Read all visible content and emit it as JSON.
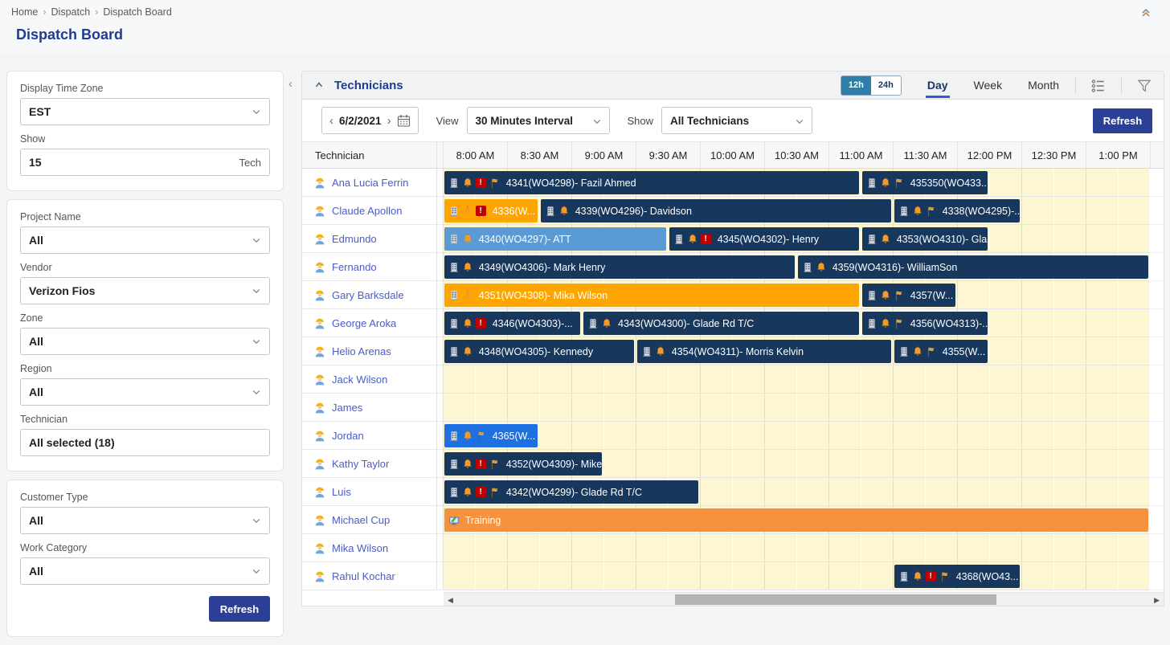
{
  "breadcrumb": {
    "items": [
      "Home",
      "Dispatch",
      "Dispatch Board"
    ]
  },
  "page_title": "Dispatch Board",
  "sidebar": {
    "panel1": {
      "timezone_label": "Display Time Zone",
      "timezone_value": "EST",
      "show_label": "Show",
      "show_value": "15",
      "show_suffix": "Tech"
    },
    "panel2": {
      "project_label": "Project Name",
      "project_value": "All",
      "vendor_label": "Vendor",
      "vendor_value": "Verizon Fios",
      "zone_label": "Zone",
      "zone_value": "All",
      "region_label": "Region",
      "region_value": "All",
      "technician_label": "Technician",
      "technician_value": "All selected (18)"
    },
    "panel3": {
      "customer_label": "Customer Type",
      "customer_value": "All",
      "work_label": "Work Category",
      "work_value": "All",
      "refresh_label": "Refresh"
    }
  },
  "panel": {
    "title": "Technicians",
    "toggle_12h": "12h",
    "toggle_24h": "24h",
    "tabs": [
      {
        "label": "Day",
        "active": true
      },
      {
        "label": "Week",
        "active": false
      },
      {
        "label": "Month",
        "active": false
      }
    ],
    "date_value": "6/2/2021",
    "view_label": "View",
    "view_value": "30 Minutes Interval",
    "show_label": "Show",
    "show_value": "All Technicians",
    "refresh_label": "Refresh"
  },
  "colors": {
    "navy": "#17375D",
    "orange": "#FFA502",
    "training_orange": "#F6913D",
    "light_blue": "#5B9BD5",
    "bright_blue": "#1E6FE0",
    "alert_red": "#C00000",
    "bell_orange": "#F59B23",
    "flag_gold": "#D9A441",
    "refresh_navy": "#2B3F96",
    "link_blue": "#4A5CC5",
    "tab_underline": "#2F5BD7",
    "toggle_teal": "#2D7FA9"
  },
  "grid": {
    "tech_col_header": "Technician",
    "interval_minutes": 30,
    "times": [
      "8:00 AM",
      "8:30 AM",
      "9:00 AM",
      "9:30 AM",
      "10:00 AM",
      "10:30 AM",
      "11:00 AM",
      "11:30 AM",
      "12:00 PM",
      "12:30 PM",
      "1:00 PM"
    ],
    "rows": [
      {
        "name": "Ana Lucia Ferrin",
        "bars": [
          {
            "start": 0,
            "end": 195,
            "color": "navy",
            "icons": [
              "building",
              "bell",
              "alert",
              "flag"
            ],
            "label": "4341(WO4298)- Fazil Ahmed"
          },
          {
            "start": 195,
            "end": 255,
            "color": "navy",
            "icons": [
              "building",
              "bell",
              "flag"
            ],
            "label": "435350(WO433..."
          }
        ]
      },
      {
        "name": "Claude Apollon",
        "bars": [
          {
            "start": 0,
            "end": 45,
            "color": "orange",
            "icons": [
              "building",
              "bell",
              "alert"
            ],
            "label": "4336(W..."
          },
          {
            "start": 45,
            "end": 210,
            "color": "navy",
            "icons": [
              "building",
              "bell"
            ],
            "label": "4339(WO4296)- Davidson"
          },
          {
            "start": 210,
            "end": 270,
            "color": "navy",
            "icons": [
              "building",
              "bell",
              "flag"
            ],
            "label": "4338(WO4295)-..."
          }
        ]
      },
      {
        "name": "Edmundo",
        "bars": [
          {
            "start": 0,
            "end": 105,
            "color": "light_blue",
            "icons": [
              "building",
              "bell"
            ],
            "label": "4340(WO4297)- ATT"
          },
          {
            "start": 105,
            "end": 195,
            "color": "navy",
            "icons": [
              "building",
              "bell",
              "alert"
            ],
            "label": "4345(WO4302)- Henry"
          },
          {
            "start": 195,
            "end": 255,
            "color": "navy",
            "icons": [
              "building",
              "bell"
            ],
            "label": "4353(WO4310)- Gla..."
          }
        ]
      },
      {
        "name": "Fernando",
        "bars": [
          {
            "start": 0,
            "end": 165,
            "color": "navy",
            "icons": [
              "building",
              "bell"
            ],
            "label": "4349(WO4306)- Mark Henry"
          },
          {
            "start": 165,
            "end": 330,
            "color": "navy",
            "icons": [
              "building",
              "bell"
            ],
            "label": "4359(WO4316)- WilliamSon"
          }
        ]
      },
      {
        "name": "Gary Barksdale",
        "bars": [
          {
            "start": 0,
            "end": 195,
            "color": "orange",
            "icons": [
              "building",
              "bell"
            ],
            "label": "4351(WO4308)- Mika Wilson"
          },
          {
            "start": 195,
            "end": 240,
            "color": "navy",
            "icons": [
              "building",
              "bell",
              "flag"
            ],
            "label": "4357(W..."
          }
        ]
      },
      {
        "name": "George Aroka",
        "bars": [
          {
            "start": 0,
            "end": 65,
            "color": "navy",
            "icons": [
              "building",
              "bell",
              "alert"
            ],
            "label": "4346(WO4303)-..."
          },
          {
            "start": 65,
            "end": 195,
            "color": "navy",
            "icons": [
              "building",
              "bell"
            ],
            "label": "4343(WO4300)- Glade Rd T/C"
          },
          {
            "start": 195,
            "end": 255,
            "color": "navy",
            "icons": [
              "building",
              "bell",
              "flag"
            ],
            "label": "4356(WO4313)-..."
          }
        ]
      },
      {
        "name": "Helio Arenas",
        "bars": [
          {
            "start": 0,
            "end": 90,
            "color": "navy",
            "icons": [
              "building",
              "bell"
            ],
            "label": "4348(WO4305)- Kennedy"
          },
          {
            "start": 90,
            "end": 210,
            "color": "navy",
            "icons": [
              "building",
              "bell"
            ],
            "label": "4354(WO4311)- Morris Kelvin"
          },
          {
            "start": 210,
            "end": 255,
            "color": "navy",
            "icons": [
              "building",
              "bell",
              "flag"
            ],
            "label": "4355(W..."
          }
        ]
      },
      {
        "name": "Jack Wilson",
        "bars": []
      },
      {
        "name": "James",
        "bars": []
      },
      {
        "name": "Jordan",
        "bars": [
          {
            "start": 0,
            "end": 45,
            "color": "bright_blue",
            "icons": [
              "building",
              "bell",
              "flag"
            ],
            "label": "4365(W..."
          }
        ]
      },
      {
        "name": "Kathy Taylor",
        "bars": [
          {
            "start": 0,
            "end": 75,
            "color": "navy",
            "icons": [
              "building",
              "bell",
              "alert",
              "flag"
            ],
            "label": "4352(WO4309)- Mike"
          }
        ]
      },
      {
        "name": "Luis",
        "bars": [
          {
            "start": 0,
            "end": 120,
            "color": "navy",
            "icons": [
              "building",
              "bell",
              "alert",
              "flag"
            ],
            "label": "4342(WO4299)- Glade Rd T/C"
          }
        ]
      },
      {
        "name": "Michael Cup",
        "bars": [
          {
            "start": 0,
            "end": 330,
            "color": "training_orange",
            "icons": [
              "training"
            ],
            "label": "Training"
          }
        ]
      },
      {
        "name": "Mika Wilson",
        "bars": []
      },
      {
        "name": "Rahul Kochar",
        "bars": [
          {
            "start": 210,
            "end": 270,
            "color": "navy",
            "icons": [
              "building",
              "bell",
              "alert",
              "flag"
            ],
            "label": "4368(WO43..."
          }
        ]
      }
    ]
  }
}
